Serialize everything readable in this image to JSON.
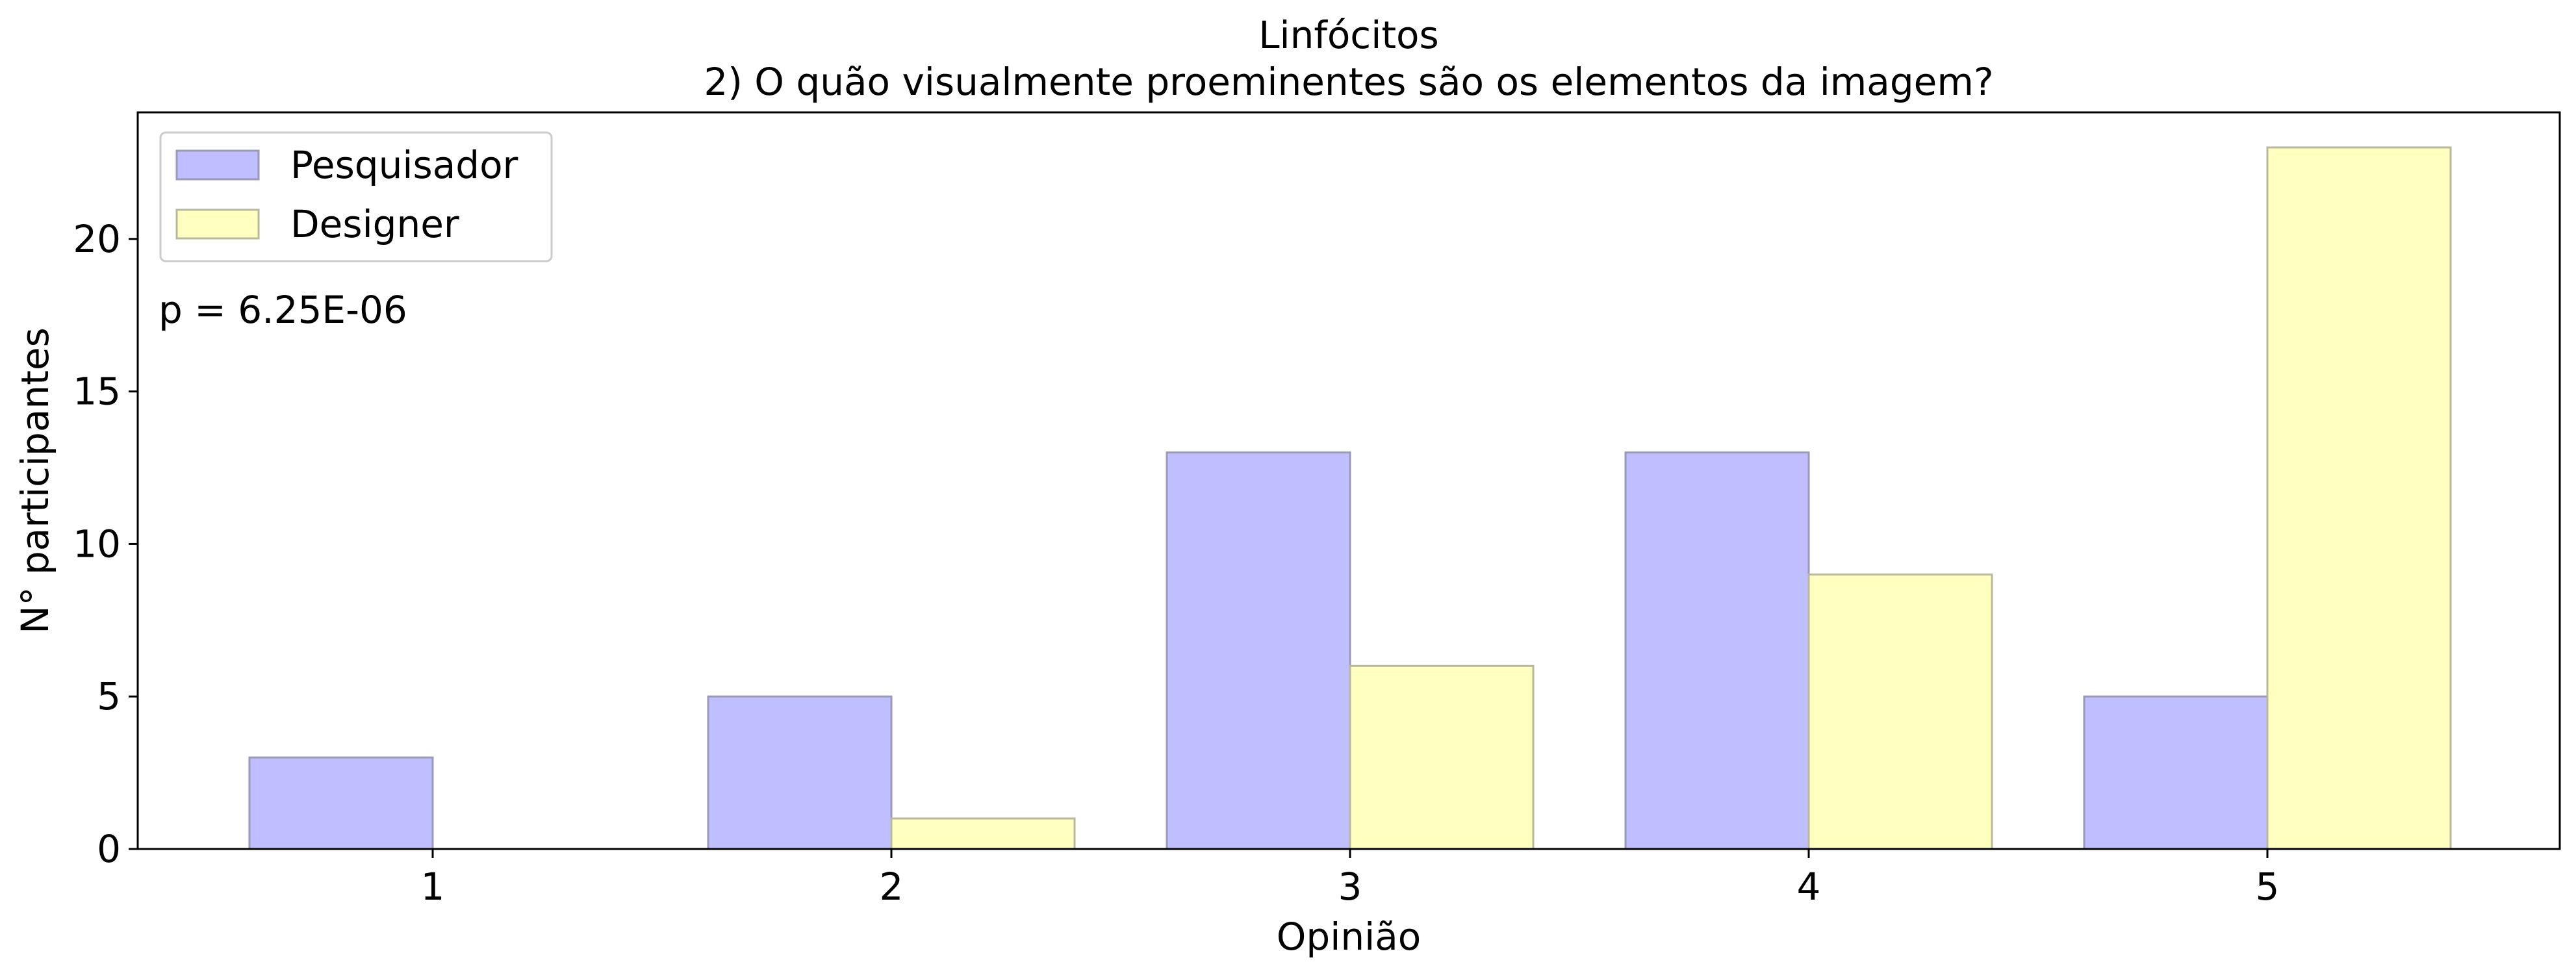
{
  "chart_data": {
    "type": "bar",
    "title": "Linfócitos",
    "subtitle": "2) O quão visualmente proeminentes são os elementos da imagem?",
    "xlabel": "Opinião",
    "ylabel": "N° participantes",
    "categories": [
      "1",
      "2",
      "3",
      "4",
      "5"
    ],
    "series": [
      {
        "name": "Pesquisador",
        "values": [
          3,
          5,
          13,
          13,
          5
        ],
        "color": "#BFBFFF",
        "edge": "#9A9AB8"
      },
      {
        "name": "Designer",
        "values": [
          0,
          1,
          6,
          9,
          23
        ],
        "color": "#FFFFBF",
        "edge": "#B8B89A"
      }
    ],
    "yticks": [
      0,
      5,
      10,
      15,
      20
    ],
    "ylim": [
      0,
      24.15
    ],
    "grid": false,
    "legend_position": "top-left",
    "annotation": "p = 6.25E-06"
  }
}
